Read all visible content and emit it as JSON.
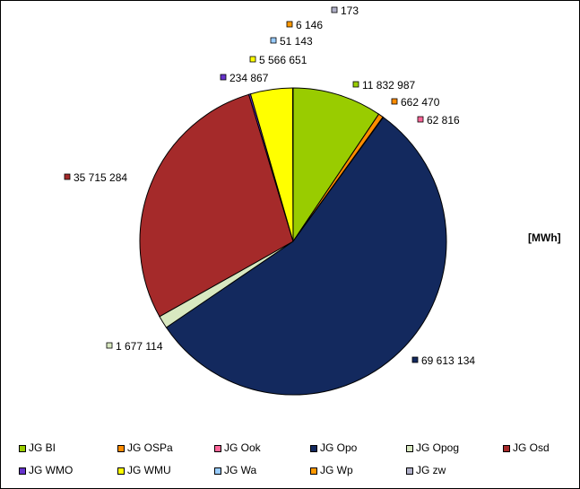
{
  "chart_data": {
    "type": "pie",
    "unit_label": "[MWh]",
    "slices": [
      {
        "name": "JG BI",
        "value": 11832987,
        "label": "11 832 987",
        "color": "#99cc00"
      },
      {
        "name": "JG OSPa",
        "value": 662470,
        "label": "662 470",
        "color": "#ff8c00"
      },
      {
        "name": "JG Ook",
        "value": 62816,
        "label": "62 816",
        "color": "#ff6699"
      },
      {
        "name": "JG Opo",
        "value": 69613134,
        "label": "69 613 134",
        "color": "#13295e"
      },
      {
        "name": "JG Opog",
        "value": 1677114,
        "label": "1 677 114",
        "color": "#d8e8c0"
      },
      {
        "name": "JG Osd",
        "value": 35715284,
        "label": "35 715 284",
        "color": "#a52a2a"
      },
      {
        "name": "JG WMO",
        "value": 234867,
        "label": "234 867",
        "color": "#6633cc"
      },
      {
        "name": "JG WMU",
        "value": 5566651,
        "label": "5 566 651",
        "color": "#ffff00"
      },
      {
        "name": "JG Wa",
        "value": 51143,
        "label": "51 143",
        "color": "#99ccff"
      },
      {
        "name": "JG Wp",
        "value": 6146,
        "label": "6 146",
        "color": "#ff9900"
      },
      {
        "name": "JG zw",
        "value": 173,
        "label": "173",
        "color": "#b0b0c8"
      }
    ]
  }
}
